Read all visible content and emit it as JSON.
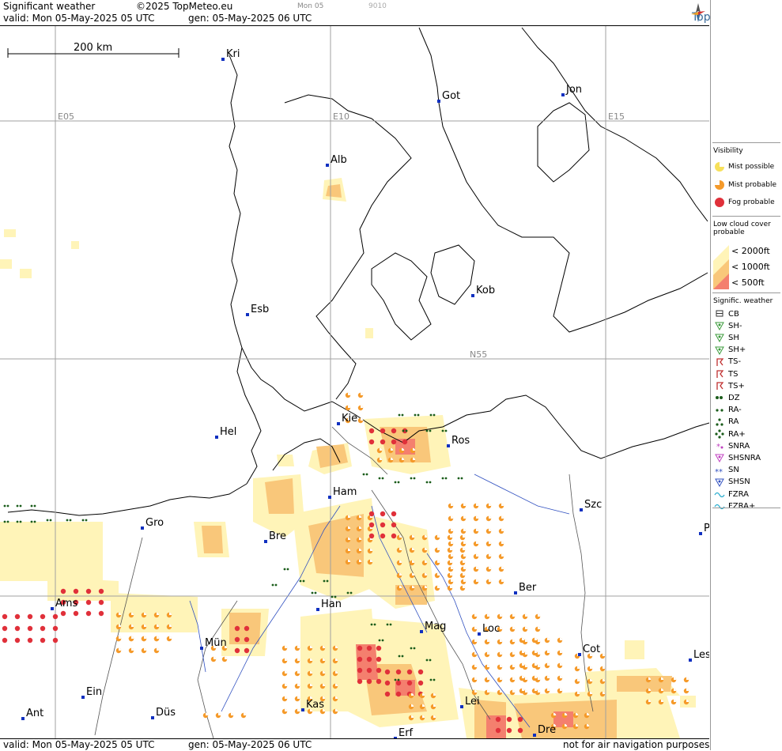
{
  "header": {
    "title": "Significant weather",
    "copyright": "©2025 TopMeteo.eu",
    "day_tag": "Mon 05",
    "code": "9010",
    "valid": "valid:  Mon  05-May-2025  05 UTC",
    "gen": "gen: 05-May-2025 06 UTC",
    "logo": "TopMeteo"
  },
  "footer": {
    "valid": "valid:  Mon  05-May-2025  05 UTC",
    "gen": "gen: 05-May-2025 06 UTC",
    "note": "not for air navigation purposes"
  },
  "scale": {
    "label": "200 km"
  },
  "grid_labels": {
    "e05": "E05",
    "e10": "E10",
    "e15": "E15",
    "n55": "N55"
  },
  "cities": [
    {
      "name": "Kri"
    },
    {
      "name": "Got"
    },
    {
      "name": "Jon"
    },
    {
      "name": "Alb"
    },
    {
      "name": "Kob"
    },
    {
      "name": "Esb"
    },
    {
      "name": "Kie"
    },
    {
      "name": "Ros"
    },
    {
      "name": "Hel"
    },
    {
      "name": "Ham"
    },
    {
      "name": "Szc"
    },
    {
      "name": "Gro"
    },
    {
      "name": "Bre"
    },
    {
      "name": "P"
    },
    {
      "name": "Ams"
    },
    {
      "name": "Han"
    },
    {
      "name": "Ber"
    },
    {
      "name": "Mag"
    },
    {
      "name": "Loc"
    },
    {
      "name": "Mün"
    },
    {
      "name": "Cot"
    },
    {
      "name": "Les"
    },
    {
      "name": "Ein"
    },
    {
      "name": "Kas"
    },
    {
      "name": "Lei"
    },
    {
      "name": "Ant"
    },
    {
      "name": "Düs"
    },
    {
      "name": "Dre"
    },
    {
      "name": "Erf"
    }
  ],
  "legend": {
    "visibility": {
      "title": "Visibility",
      "items": [
        "Mist possible",
        "Mist probable",
        "Fog probable"
      ]
    },
    "low_cloud": {
      "title": "Low cloud cover probable",
      "items": [
        "< 2000ft",
        "< 1000ft",
        "<   500ft"
      ]
    },
    "sig_weather": {
      "title": "Signific. weather",
      "items": [
        "CB",
        "SH-",
        "SH",
        "SH+",
        "TS-",
        "TS",
        "TS+",
        "DZ",
        "RA-",
        "RA",
        "RA+",
        "SNRA",
        "SHSNRA",
        "SN",
        "SHSN",
        "FZRA",
        "FZRA+"
      ]
    }
  },
  "colors": {
    "cloud_2000": "#fff4b8",
    "cloud_1000": "#f9c77a",
    "cloud_500": "#f47f6e",
    "mist_possible": "#f7e05a",
    "mist_probable": "#f59a2a",
    "fog": "#e0303a",
    "rain": "#1a5c1a",
    "city_marker": "#1030c0",
    "grid": "#a0a0a0"
  }
}
